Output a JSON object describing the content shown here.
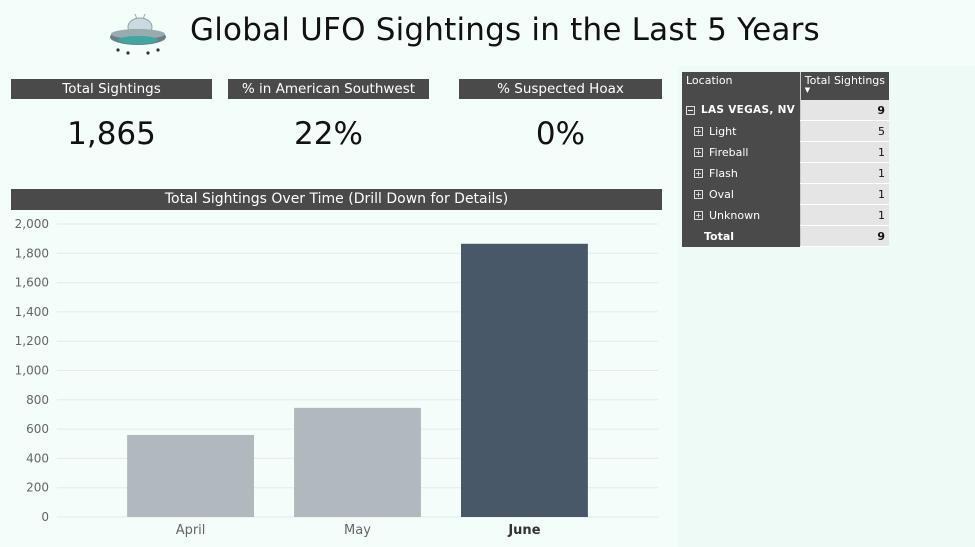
{
  "header": {
    "title": "Global UFO Sightings in the Last 5 Years"
  },
  "kpis": [
    {
      "label": "Total Sightings",
      "value": "1,865"
    },
    {
      "label": "% in American Southwest",
      "value": "22%"
    },
    {
      "label": "% Suspected Hoax",
      "value": "0%"
    }
  ],
  "chart_panel": {
    "title": "Total Sightings Over Time (Drill Down for Details)"
  },
  "chart_data": {
    "type": "bar",
    "categories": [
      "April",
      "May",
      "June"
    ],
    "values": [
      560,
      745,
      1865
    ],
    "ylim": [
      0,
      2000
    ],
    "yticks": [
      "0",
      "200",
      "400",
      "600",
      "800",
      "1,000",
      "1,200",
      "1,400",
      "1,600",
      "1,800",
      "2,000"
    ],
    "selected_category": "June",
    "grid": true,
    "colors": {
      "bar": "#b0b9bd",
      "selected": "#485868",
      "grid": "#e3ece9",
      "tick": "#666666"
    }
  },
  "table": {
    "headers": {
      "location": "Location",
      "total": "Total Sightings"
    },
    "group": {
      "label": "LAS VEGAS, NV",
      "value": "9",
      "expander": "−"
    },
    "rows": [
      {
        "label": "Light",
        "value": "5",
        "expander": "+"
      },
      {
        "label": "Fireball",
        "value": "1",
        "expander": "+"
      },
      {
        "label": "Flash",
        "value": "1",
        "expander": "+"
      },
      {
        "label": "Oval",
        "value": "1",
        "expander": "+"
      },
      {
        "label": "Unknown",
        "value": "1",
        "expander": "+"
      }
    ],
    "total": {
      "label": "Total",
      "value": "9"
    }
  },
  "icons": {
    "logo": "ufo-icon",
    "sort": "sort-desc-icon"
  }
}
